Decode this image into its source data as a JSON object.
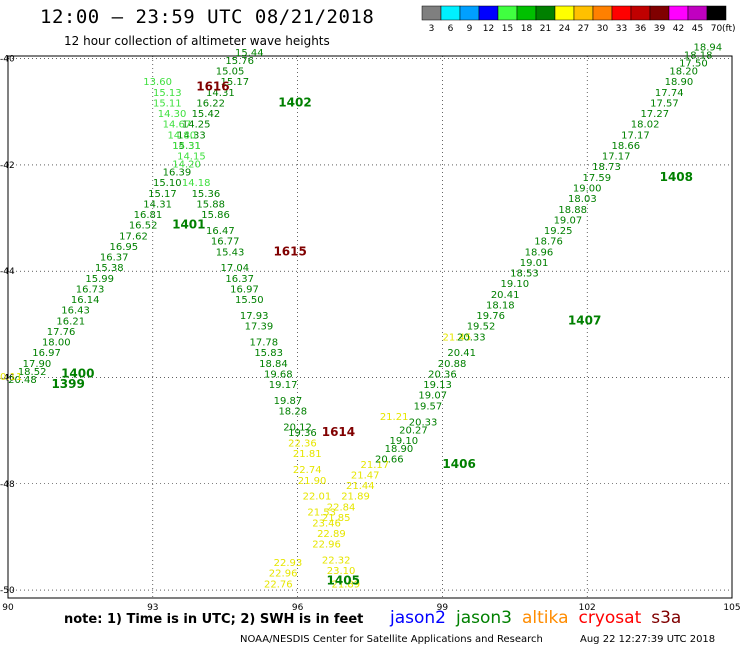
{
  "header": {
    "title": "12:00 – 23:59 UTC 08/21/2018",
    "subtitle": "12 hour collection of altimeter wave heights"
  },
  "legend": {
    "unit": "(ft)",
    "bins": [
      {
        "label": "3",
        "color": "#7f7f7f"
      },
      {
        "label": "6",
        "color": "#00f0ff"
      },
      {
        "label": "9",
        "color": "#00a0ff"
      },
      {
        "label": "12",
        "color": "#0000ff"
      },
      {
        "label": "15",
        "color": "#40ff40"
      },
      {
        "label": "18",
        "color": "#00c000"
      },
      {
        "label": "21",
        "color": "#008000"
      },
      {
        "label": "24",
        "color": "#ffff00"
      },
      {
        "label": "27",
        "color": "#ffc000"
      },
      {
        "label": "30",
        "color": "#ff8000"
      },
      {
        "label": "33",
        "color": "#ff0000"
      },
      {
        "label": "36",
        "color": "#c00000"
      },
      {
        "label": "39",
        "color": "#800000"
      },
      {
        "label": "42",
        "color": "#ff00ff"
      },
      {
        "label": "45",
        "color": "#c000c0"
      },
      {
        "label": "70",
        "color": "#000000"
      }
    ]
  },
  "axes": {
    "lat_ticks": [
      "-40",
      "-42",
      "-44",
      "-46",
      "-48",
      "-50"
    ],
    "lon_ticks": [
      "90",
      "93",
      "96",
      "99",
      "102",
      "105"
    ]
  },
  "track_labels": [
    {
      "text": "1616",
      "lon": 93.9,
      "lat": -40.6,
      "color": "#800000"
    },
    {
      "text": "1402",
      "lon": 95.6,
      "lat": -40.9,
      "color": "#008000"
    },
    {
      "text": "1401",
      "lon": 93.4,
      "lat": -43.2,
      "color": "#008000"
    },
    {
      "text": "1615",
      "lon": 95.5,
      "lat": -43.7,
      "color": "#800000"
    },
    {
      "text": "1400",
      "lon": 91.1,
      "lat": -46.0,
      "color": "#008000"
    },
    {
      "text": "1399",
      "lon": 90.9,
      "lat": -46.2,
      "color": "#008000"
    },
    {
      "text": "1614",
      "lon": 96.5,
      "lat": -47.1,
      "color": "#800000"
    },
    {
      "text": "1406",
      "lon": 99.0,
      "lat": -47.7,
      "color": "#008000"
    },
    {
      "text": "1407",
      "lon": 101.6,
      "lat": -45.0,
      "color": "#008000"
    },
    {
      "text": "1408",
      "lon": 103.5,
      "lat": -42.3,
      "color": "#008000"
    },
    {
      "text": "1405",
      "lon": 96.6,
      "lat": -49.9,
      "color": "#008000"
    }
  ],
  "tracks": [
    {
      "name": "jason3 ascending west",
      "color": "#008000",
      "points": [
        {
          "v": "15.44",
          "lon": 95.0,
          "lat": -39.95
        },
        {
          "v": "15.76",
          "lon": 94.8,
          "lat": -40.1
        },
        {
          "v": "15.05",
          "lon": 94.6,
          "lat": -40.3
        },
        {
          "v": "15.17",
          "lon": 94.7,
          "lat": -40.5
        },
        {
          "v": "14.31",
          "lon": 94.4,
          "lat": -40.7
        },
        {
          "v": "16.22",
          "lon": 94.2,
          "lat": -40.9
        },
        {
          "v": "15.42",
          "lon": 94.1,
          "lat": -41.1
        },
        {
          "v": "14.25",
          "lon": 93.9,
          "lat": -41.3
        },
        {
          "v": "14.33",
          "lon": 93.8,
          "lat": -41.5
        },
        {
          "v": "15.31",
          "lon": 93.7,
          "lat": -41.7
        },
        {
          "v": "16.39",
          "lon": 93.5,
          "lat": -42.2
        },
        {
          "v": "15.10",
          "lon": 93.3,
          "lat": -42.4
        },
        {
          "v": "15.17",
          "lon": 93.2,
          "lat": -42.6
        },
        {
          "v": "14.31",
          "lon": 93.1,
          "lat": -42.8
        },
        {
          "v": "16.81",
          "lon": 92.9,
          "lat": -43.0
        },
        {
          "v": "16.52",
          "lon": 92.8,
          "lat": -43.2
        },
        {
          "v": "17.62",
          "lon": 92.6,
          "lat": -43.4
        },
        {
          "v": "16.95",
          "lon": 92.4,
          "lat": -43.6
        },
        {
          "v": "16.37",
          "lon": 92.2,
          "lat": -43.8
        },
        {
          "v": "15.38",
          "lon": 92.1,
          "lat": -44.0
        },
        {
          "v": "15.99",
          "lon": 91.9,
          "lat": -44.2
        },
        {
          "v": "16.73",
          "lon": 91.7,
          "lat": -44.4
        },
        {
          "v": "16.14",
          "lon": 91.6,
          "lat": -44.6
        },
        {
          "v": "16.43",
          "lon": 91.4,
          "lat": -44.8
        },
        {
          "v": "16.21",
          "lon": 91.3,
          "lat": -45.0
        },
        {
          "v": "17.76",
          "lon": 91.1,
          "lat": -45.2
        },
        {
          "v": "18.00",
          "lon": 91.0,
          "lat": -45.4
        },
        {
          "v": "16.97",
          "lon": 90.8,
          "lat": -45.6
        },
        {
          "v": "17.90",
          "lon": 90.6,
          "lat": -45.8
        },
        {
          "v": "18.52",
          "lon": 90.5,
          "lat": -45.95
        },
        {
          "v": "20.48",
          "lon": 90.3,
          "lat": -46.1
        }
      ]
    },
    {
      "name": "jason3 light west",
      "color": "#40e040",
      "points": [
        {
          "v": "13.60",
          "lon": 93.1,
          "lat": -40.5
        },
        {
          "v": "15.13",
          "lon": 93.3,
          "lat": -40.7
        },
        {
          "v": "15.11",
          "lon": 93.3,
          "lat": -40.9
        },
        {
          "v": "14.30",
          "lon": 93.4,
          "lat": -41.1
        },
        {
          "v": "14.67",
          "lon": 93.5,
          "lat": -41.3
        },
        {
          "v": "14.80",
          "lon": 93.6,
          "lat": -41.5
        },
        {
          "v": "14.31",
          "lon": 93.7,
          "lat": -41.7
        },
        {
          "v": "14.15",
          "lon": 93.8,
          "lat": -41.9
        },
        {
          "v": "14.20",
          "lon": 93.7,
          "lat": -42.05
        },
        {
          "v": "14.18",
          "lon": 93.9,
          "lat": -42.4
        }
      ]
    },
    {
      "name": "jason3 descending central",
      "color": "#008000",
      "points": [
        {
          "v": "15.36",
          "lon": 94.1,
          "lat": -42.6
        },
        {
          "v": "15.88",
          "lon": 94.2,
          "lat": -42.8
        },
        {
          "v": "15.86",
          "lon": 94.3,
          "lat": -43.0
        },
        {
          "v": "16.47",
          "lon": 94.4,
          "lat": -43.3
        },
        {
          "v": "16.77",
          "lon": 94.5,
          "lat": -43.5
        },
        {
          "v": "15.43",
          "lon": 94.6,
          "lat": -43.7
        },
        {
          "v": "17.04",
          "lon": 94.7,
          "lat": -44.0
        },
        {
          "v": "16.37",
          "lon": 94.8,
          "lat": -44.2
        },
        {
          "v": "16.97",
          "lon": 94.9,
          "lat": -44.4
        },
        {
          "v": "15.50",
          "lon": 95.0,
          "lat": -44.6
        },
        {
          "v": "17.93",
          "lon": 95.1,
          "lat": -44.9
        },
        {
          "v": "17.39",
          "lon": 95.2,
          "lat": -45.1
        },
        {
          "v": "17.78",
          "lon": 95.3,
          "lat": -45.4
        },
        {
          "v": "15.83",
          "lon": 95.4,
          "lat": -45.6
        },
        {
          "v": "18.84",
          "lon": 95.5,
          "lat": -45.8
        },
        {
          "v": "19.68",
          "lon": 95.6,
          "lat": -46.0
        },
        {
          "v": "19.17",
          "lon": 95.7,
          "lat": -46.2
        },
        {
          "v": "19.87",
          "lon": 95.8,
          "lat": -46.5
        },
        {
          "v": "18.28",
          "lon": 95.9,
          "lat": -46.7
        },
        {
          "v": "20.12",
          "lon": 96.0,
          "lat": -47.0
        },
        {
          "v": "19.36",
          "lon": 96.1,
          "lat": -47.1
        }
      ]
    },
    {
      "name": "altika yellow",
      "color": "#e6e600",
      "points": [
        {
          "v": "22.36",
          "lon": 96.1,
          "lat": -47.3
        },
        {
          "v": "21.81",
          "lon": 96.2,
          "lat": -47.5
        },
        {
          "v": "22.74",
          "lon": 96.2,
          "lat": -47.8
        },
        {
          "v": "21.90",
          "lon": 96.3,
          "lat": -48.0
        },
        {
          "v": "22.01",
          "lon": 96.4,
          "lat": -48.3
        },
        {
          "v": "21.53",
          "lon": 96.5,
          "lat": -48.6
        },
        {
          "v": "23.46",
          "lon": 96.6,
          "lat": -48.8
        },
        {
          "v": "22.89",
          "lon": 96.7,
          "lat": -49.0
        },
        {
          "v": "22.96",
          "lon": 96.6,
          "lat": -49.2
        },
        {
          "v": "22.32",
          "lon": 96.8,
          "lat": -49.5
        },
        {
          "v": "23.10",
          "lon": 96.9,
          "lat": -49.7
        },
        {
          "v": "21.89",
          "lon": 97.0,
          "lat": -49.95
        },
        {
          "v": "22.76",
          "lon": 95.6,
          "lat": -49.95
        },
        {
          "v": "22.96",
          "lon": 95.7,
          "lat": -49.75
        },
        {
          "v": "22.93",
          "lon": 95.8,
          "lat": -49.55
        },
        {
          "v": "21.85",
          "lon": 96.8,
          "lat": -48.7
        },
        {
          "v": "22.84",
          "lon": 96.9,
          "lat": -48.5
        },
        {
          "v": "21.89",
          "lon": 97.2,
          "lat": -48.3
        },
        {
          "v": "21.44",
          "lon": 97.3,
          "lat": -48.1
        },
        {
          "v": "21.47",
          "lon": 97.4,
          "lat": -47.9
        },
        {
          "v": "21.17",
          "lon": 97.6,
          "lat": -47.7
        },
        {
          "v": "21.21",
          "lon": 98.0,
          "lat": -46.8
        },
        {
          "v": "21.45",
          "lon": 99.3,
          "lat": -45.3
        },
        {
          "v": "20.11",
          "lon": 90.0,
          "lat": -46.05
        }
      ]
    },
    {
      "name": "jason3 ascending east",
      "color": "#008000",
      "points": [
        {
          "v": "20.66",
          "lon": 97.9,
          "lat": -47.6
        },
        {
          "v": "18.90",
          "lon": 98.1,
          "lat": -47.4
        },
        {
          "v": "19.10",
          "lon": 98.2,
          "lat": -47.25
        },
        {
          "v": "20.27",
          "lon": 98.4,
          "lat": -47.05
        },
        {
          "v": "20.33",
          "lon": 98.6,
          "lat": -46.9
        },
        {
          "v": "19.57",
          "lon": 98.7,
          "lat": -46.6
        },
        {
          "v": "19.07",
          "lon": 98.8,
          "lat": -46.4
        },
        {
          "v": "19.13",
          "lon": 98.9,
          "lat": -46.2
        },
        {
          "v": "20.36",
          "lon": 99.0,
          "lat": -46.0
        },
        {
          "v": "20.88",
          "lon": 99.2,
          "lat": -45.8
        },
        {
          "v": "20.41",
          "lon": 99.4,
          "lat": -45.6
        },
        {
          "v": "20.33",
          "lon": 99.6,
          "lat": -45.3
        },
        {
          "v": "19.52",
          "lon": 99.8,
          "lat": -45.1
        },
        {
          "v": "19.76",
          "lon": 100.0,
          "lat": -44.9
        },
        {
          "v": "18.18",
          "lon": 100.2,
          "lat": -44.7
        },
        {
          "v": "20.41",
          "lon": 100.3,
          "lat": -44.5
        },
        {
          "v": "19.10",
          "lon": 100.5,
          "lat": -44.3
        },
        {
          "v": "18.53",
          "lon": 100.7,
          "lat": -44.1
        },
        {
          "v": "19.01",
          "lon": 100.9,
          "lat": -43.9
        },
        {
          "v": "18.96",
          "lon": 101.0,
          "lat": -43.7
        },
        {
          "v": "18.76",
          "lon": 101.2,
          "lat": -43.5
        },
        {
          "v": "19.25",
          "lon": 101.4,
          "lat": -43.3
        },
        {
          "v": "19.07",
          "lon": 101.6,
          "lat": -43.1
        },
        {
          "v": "18.88",
          "lon": 101.7,
          "lat": -42.9
        },
        {
          "v": "18.03",
          "lon": 101.9,
          "lat": -42.7
        },
        {
          "v": "19.00",
          "lon": 102.0,
          "lat": -42.5
        },
        {
          "v": "17.59",
          "lon": 102.2,
          "lat": -42.3
        },
        {
          "v": "18.73",
          "lon": 102.4,
          "lat": -42.1
        },
        {
          "v": "17.17",
          "lon": 102.6,
          "lat": -41.9
        },
        {
          "v": "18.66",
          "lon": 102.8,
          "lat": -41.7
        },
        {
          "v": "17.17",
          "lon": 103.0,
          "lat": -41.5
        },
        {
          "v": "18.02",
          "lon": 103.2,
          "lat": -41.3
        },
        {
          "v": "17.27",
          "lon": 103.4,
          "lat": -41.1
        },
        {
          "v": "17.57",
          "lon": 103.6,
          "lat": -40.9
        },
        {
          "v": "17.74",
          "lon": 103.7,
          "lat": -40.7
        },
        {
          "v": "18.90",
          "lon": 103.9,
          "lat": -40.5
        },
        {
          "v": "18.20",
          "lon": 104.0,
          "lat": -40.3
        },
        {
          "v": "17.50",
          "lon": 104.2,
          "lat": -40.15
        },
        {
          "v": "18.18",
          "lon": 104.3,
          "lat": -40.0
        },
        {
          "v": "18.94",
          "lon": 104.5,
          "lat": -39.85
        }
      ]
    }
  ],
  "footer": {
    "note": "note:  1) Time is in UTC;  2) SWH is in feet",
    "sats": [
      {
        "name": "jason2",
        "color": "#0000ff"
      },
      {
        "name": "jason3",
        "color": "#008000"
      },
      {
        "name": "altika",
        "color": "#ff8c00"
      },
      {
        "name": "cryosat",
        "color": "#ff0000"
      },
      {
        "name": "s3a",
        "color": "#800000"
      }
    ],
    "credit": "NOAA/NESDIS Center for Satellite Applications and Research",
    "stamp": "Aug 22 12:27:39 UTC 2018"
  }
}
